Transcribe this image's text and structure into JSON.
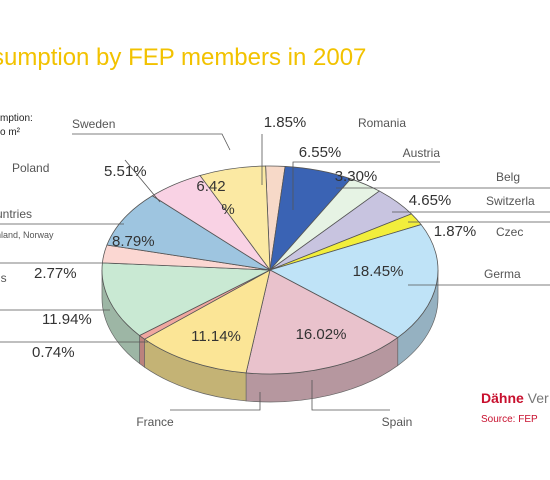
{
  "chart_data": {
    "type": "pie",
    "title": "sumption by FEP members in 2007",
    "left_note": [
      "mption:",
      "o m²"
    ],
    "slices": [
      {
        "name": "Romania",
        "value": 1.85,
        "label": "1.85%",
        "color": "#f7d9c8"
      },
      {
        "name": "Austria",
        "value": 6.55,
        "label": "6.55%",
        "color": "#3a63b4"
      },
      {
        "name": "Belg",
        "value": 3.3,
        "label": "3.30%",
        "color": "#e6f3e4"
      },
      {
        "name": "Switzerla",
        "value": 4.65,
        "label": "4.65%",
        "color": "#c8c4e0"
      },
      {
        "name": "Czec",
        "value": 1.87,
        "label": "1.87%",
        "color": "#f2ee3c"
      },
      {
        "name": "Germa",
        "value": 18.45,
        "label": "18.45%",
        "color": "#bfe3f7"
      },
      {
        "name": "Spain",
        "value": 16.02,
        "label": "16.02%",
        "color": "#e9c2cc"
      },
      {
        "name": "France",
        "value": 11.14,
        "label": "11.14%",
        "color": "#fbe596"
      },
      {
        "name": "",
        "value": 0.74,
        "label": "0.74%",
        "color": "#f0a7a0"
      },
      {
        "name": "",
        "value": 11.94,
        "label": "11.94%",
        "color": "#c9e9d3"
      },
      {
        "name": "ds",
        "value": 2.77,
        "label": "2.77%",
        "color": "#fbd7d2"
      },
      {
        "name": "untries",
        "sublabel": "nland, Norway",
        "value": 8.79,
        "label": "8.79%",
        "color": "#9ec5e0"
      },
      {
        "name": "Poland",
        "value": 5.51,
        "label": "5.51%",
        "color": "#f9d2e4"
      },
      {
        "name": "Sweden",
        "value": 6.42,
        "label": "6.42 %",
        "color": "#fbe9a3"
      }
    ]
  },
  "publisher": {
    "bold": "Dähne",
    "rest": " Ver"
  },
  "source": "Source: FEP"
}
